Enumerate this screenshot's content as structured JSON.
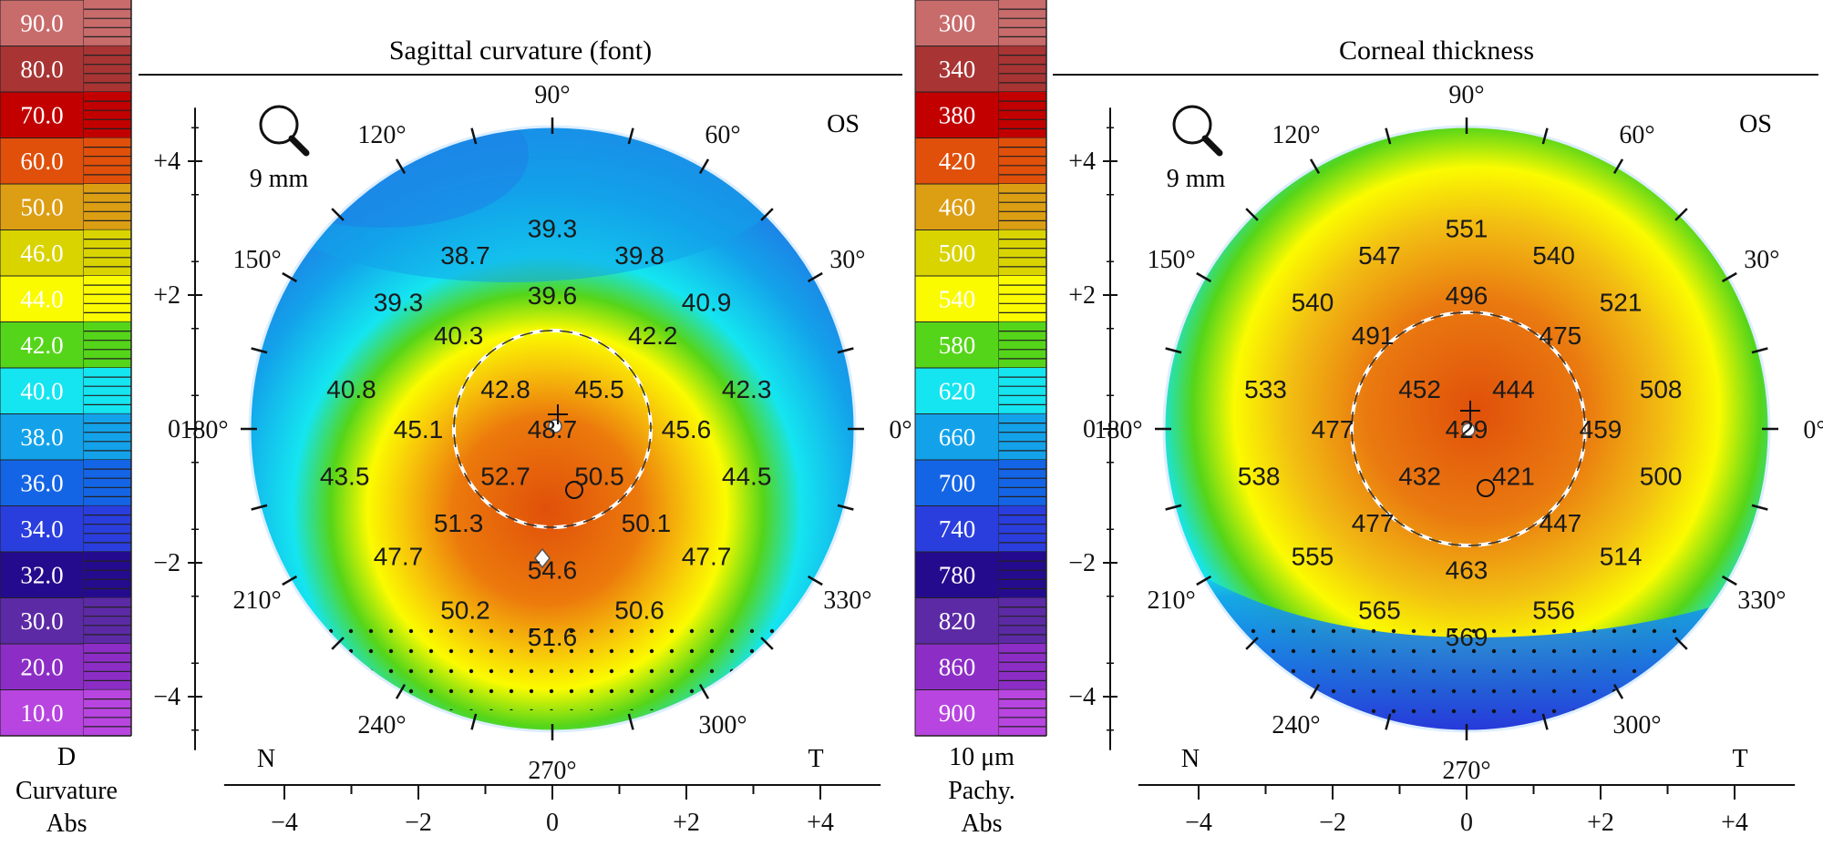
{
  "panels": [
    {
      "id": "curvature",
      "title": "Sagittal curvature (font)",
      "eye": "OS",
      "lens_label": "9 mm",
      "scale_unit": "D",
      "scale_type": "Curvature",
      "scale_mode": "Abs",
      "scale": [
        {
          "label": "90.0",
          "color": "#c86b6b"
        },
        {
          "label": "80.0",
          "color": "#a83434"
        },
        {
          "label": "70.0",
          "color": "#c20000"
        },
        {
          "label": "60.0",
          "color": "#e0500a"
        },
        {
          "label": "50.0",
          "color": "#dc9e12"
        },
        {
          "label": "46.0",
          "color": "#d9d400"
        },
        {
          "label": "44.0",
          "color": "#fbfb00"
        },
        {
          "label": "42.0",
          "color": "#55d519"
        },
        {
          "label": "40.0",
          "color": "#14e5f0"
        },
        {
          "label": "38.0",
          "color": "#13a2ea"
        },
        {
          "label": "36.0",
          "color": "#1465e5"
        },
        {
          "label": "34.0",
          "color": "#2a3ede"
        },
        {
          "label": "32.0",
          "color": "#240b8e"
        },
        {
          "label": "30.0",
          "color": "#5c2aa5"
        },
        {
          "label": "20.0",
          "color": "#8c2ec6"
        },
        {
          "label": "10.0",
          "color": "#b845e0"
        }
      ],
      "values": [
        {
          "v": "39.3",
          "x": 0.0,
          "y": 3.0
        },
        {
          "v": "38.7",
          "x": -1.3,
          "y": 2.6
        },
        {
          "v": "39.8",
          "x": 1.3,
          "y": 2.6
        },
        {
          "v": "39.6",
          "x": 0.0,
          "y": 2.0
        },
        {
          "v": "39.3",
          "x": -2.3,
          "y": 1.9
        },
        {
          "v": "40.9",
          "x": 2.3,
          "y": 1.9
        },
        {
          "v": "40.3",
          "x": -1.4,
          "y": 1.4
        },
        {
          "v": "42.2",
          "x": 1.5,
          "y": 1.4
        },
        {
          "v": "40.8",
          "x": -3.0,
          "y": 0.6
        },
        {
          "v": "42.3",
          "x": 2.9,
          "y": 0.6
        },
        {
          "v": "42.8",
          "x": -0.7,
          "y": 0.6
        },
        {
          "v": "45.5",
          "x": 0.7,
          "y": 0.6
        },
        {
          "v": "45.1",
          "x": -2.0,
          "y": 0.0
        },
        {
          "v": "48.7",
          "x": 0.0,
          "y": 0.0
        },
        {
          "v": "45.6",
          "x": 2.0,
          "y": 0.0
        },
        {
          "v": "43.5",
          "x": -3.1,
          "y": -0.7
        },
        {
          "v": "44.5",
          "x": 2.9,
          "y": -0.7
        },
        {
          "v": "52.7",
          "x": -0.7,
          "y": -0.7
        },
        {
          "v": "50.5",
          "x": 0.7,
          "y": -0.7
        },
        {
          "v": "51.3",
          "x": -1.4,
          "y": -1.4
        },
        {
          "v": "50.1",
          "x": 1.4,
          "y": -1.4
        },
        {
          "v": "47.7",
          "x": -2.3,
          "y": -1.9
        },
        {
          "v": "47.7",
          "x": 2.3,
          "y": -1.9
        },
        {
          "v": "54.6",
          "x": 0.0,
          "y": -2.1
        },
        {
          "v": "50.2",
          "x": -1.3,
          "y": -2.7
        },
        {
          "v": "50.6",
          "x": 1.3,
          "y": -2.7
        },
        {
          "v": "51.6",
          "x": 0.0,
          "y": -3.1
        }
      ]
    },
    {
      "id": "thickness",
      "title": "Corneal thickness",
      "eye": "OS",
      "lens_label": "9 mm",
      "scale_unit": "10 μm",
      "scale_type": "Pachy.",
      "scale_mode": "Abs",
      "scale": [
        {
          "label": "300",
          "color": "#c86b6b"
        },
        {
          "label": "340",
          "color": "#a83434"
        },
        {
          "label": "380",
          "color": "#c20000"
        },
        {
          "label": "420",
          "color": "#e0500a"
        },
        {
          "label": "460",
          "color": "#dc9e12"
        },
        {
          "label": "500",
          "color": "#d9d400"
        },
        {
          "label": "540",
          "color": "#fbfb00"
        },
        {
          "label": "580",
          "color": "#55d519"
        },
        {
          "label": "620",
          "color": "#14e5f0"
        },
        {
          "label": "660",
          "color": "#13a2ea"
        },
        {
          "label": "700",
          "color": "#1465e5"
        },
        {
          "label": "740",
          "color": "#2a3ede"
        },
        {
          "label": "780",
          "color": "#240b8e"
        },
        {
          "label": "820",
          "color": "#5c2aa5"
        },
        {
          "label": "860",
          "color": "#8c2ec6"
        },
        {
          "label": "900",
          "color": "#b845e0"
        }
      ],
      "values": [
        {
          "v": "551",
          "x": 0.0,
          "y": 3.0
        },
        {
          "v": "547",
          "x": -1.3,
          "y": 2.6
        },
        {
          "v": "540",
          "x": 1.3,
          "y": 2.6
        },
        {
          "v": "496",
          "x": 0.0,
          "y": 2.0
        },
        {
          "v": "540",
          "x": -2.3,
          "y": 1.9
        },
        {
          "v": "521",
          "x": 2.3,
          "y": 1.9
        },
        {
          "v": "491",
          "x": -1.4,
          "y": 1.4
        },
        {
          "v": "475",
          "x": 1.4,
          "y": 1.4
        },
        {
          "v": "533",
          "x": -3.0,
          "y": 0.6
        },
        {
          "v": "508",
          "x": 2.9,
          "y": 0.6
        },
        {
          "v": "452",
          "x": -0.7,
          "y": 0.6
        },
        {
          "v": "444",
          "x": 0.7,
          "y": 0.6
        },
        {
          "v": "477",
          "x": -2.0,
          "y": 0.0
        },
        {
          "v": "429",
          "x": 0.0,
          "y": 0.0
        },
        {
          "v": "459",
          "x": 2.0,
          "y": 0.0
        },
        {
          "v": "538",
          "x": -3.1,
          "y": -0.7
        },
        {
          "v": "500",
          "x": 2.9,
          "y": -0.7
        },
        {
          "v": "432",
          "x": -0.7,
          "y": -0.7
        },
        {
          "v": "421",
          "x": 0.7,
          "y": -0.7
        },
        {
          "v": "477",
          "x": -1.4,
          "y": -1.4
        },
        {
          "v": "447",
          "x": 1.4,
          "y": -1.4
        },
        {
          "v": "555",
          "x": -2.3,
          "y": -1.9
        },
        {
          "v": "514",
          "x": 2.3,
          "y": -1.9
        },
        {
          "v": "463",
          "x": 0.0,
          "y": -2.1
        },
        {
          "v": "565",
          "x": -1.3,
          "y": -2.7
        },
        {
          "v": "556",
          "x": 1.3,
          "y": -2.7
        },
        {
          "v": "569",
          "x": 0.0,
          "y": -3.1
        }
      ]
    }
  ],
  "angles": [
    {
      "deg": 0,
      "label": "0°"
    },
    {
      "deg": 30,
      "label": "30°"
    },
    {
      "deg": 60,
      "label": "60°"
    },
    {
      "deg": 90,
      "label": "90°"
    },
    {
      "deg": 120,
      "label": "120°"
    },
    {
      "deg": 150,
      "label": "150°"
    },
    {
      "deg": 180,
      "label": "180°"
    },
    {
      "deg": 210,
      "label": "210°"
    },
    {
      "deg": 240,
      "label": "240°"
    },
    {
      "deg": 270,
      "label": "270°"
    },
    {
      "deg": 300,
      "label": "300°"
    },
    {
      "deg": 330,
      "label": "330°"
    }
  ],
  "y_ticks": [
    {
      "value": 4,
      "label": "+4"
    },
    {
      "value": 2,
      "label": "+2"
    },
    {
      "value": 0,
      "label": "0"
    },
    {
      "value": -2,
      "label": "−2"
    },
    {
      "value": -4,
      "label": "−4"
    }
  ],
  "x_ticks": [
    {
      "value": -4,
      "label": "−4"
    },
    {
      "value": -2,
      "label": "−2"
    },
    {
      "value": 0,
      "label": "0"
    },
    {
      "value": 2,
      "label": "+2"
    },
    {
      "value": 4,
      "label": "+4"
    }
  ],
  "nasal_label": "N",
  "temporal_label": "T"
}
